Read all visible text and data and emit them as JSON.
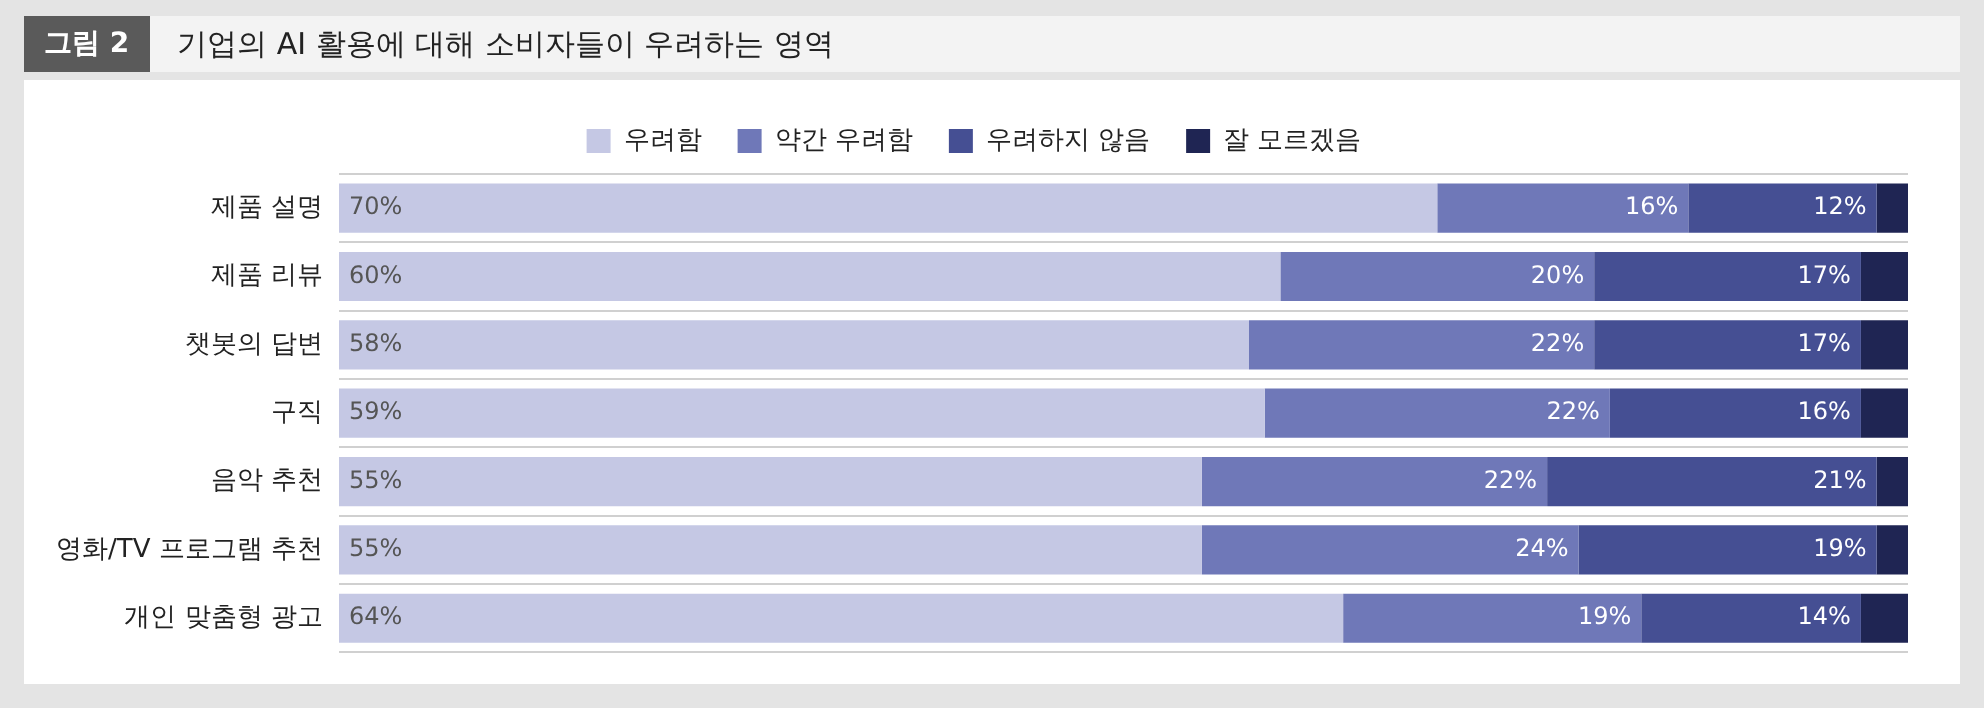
{
  "chart_data": {
    "type": "bar",
    "orientation": "horizontal",
    "stacked": true,
    "title": "기업의 AI 활용에 대해 소비자들이 우려하는 영역",
    "annotations": [
      "그림 2"
    ],
    "categories": [
      "제품 설명",
      "제품 리뷰",
      "챗봇의 답변",
      "구직",
      "음악 추천",
      "영화/TV 프로그램 추천",
      "개인 맞춤형 광고"
    ],
    "series": [
      {
        "name": "우려함",
        "color": "#c5c8e4",
        "values": [
          70,
          60,
          58,
          59,
          55,
          55,
          64
        ],
        "value_labels": [
          "70%",
          "60%",
          "58%",
          "59%",
          "55%",
          "55%",
          "64%"
        ]
      },
      {
        "name": "약간 우려함",
        "color": "#6f78b8",
        "values": [
          16,
          20,
          22,
          22,
          22,
          24,
          19
        ],
        "value_labels": [
          "16%",
          "20%",
          "22%",
          "22%",
          "22%",
          "24%",
          "19%"
        ]
      },
      {
        "name": "우려하지 않음",
        "color": "#454f93",
        "values": [
          12,
          17,
          17,
          16,
          21,
          19,
          14
        ],
        "value_labels": [
          "12%",
          "17%",
          "17%",
          "16%",
          "21%",
          "19%",
          "14%"
        ]
      },
      {
        "name": "잘 모르겠음",
        "color": "#1f2553",
        "values": [
          2,
          3,
          3,
          3,
          2,
          2,
          3
        ]
      }
    ],
    "xlim": [
      0,
      100
    ],
    "tick_labels": "y",
    "grid": "y",
    "legend": "top"
  }
}
